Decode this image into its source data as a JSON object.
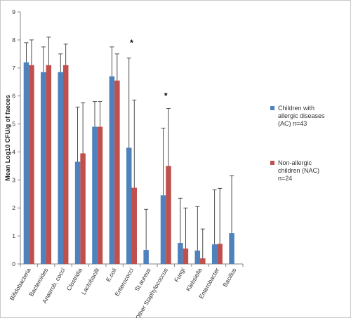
{
  "chart_data": {
    "type": "bar",
    "ylabel": "Mean Log10 CFU/g of faeces",
    "ylim": [
      0,
      9
    ],
    "yticks": [
      0,
      1,
      2,
      3,
      4,
      5,
      6,
      7,
      8,
      9
    ],
    "grid": false,
    "legend_position": "right",
    "categories": [
      "Bifidobacteria",
      "Bacteroides",
      "Anaerob. cocci",
      "Clostridia",
      "Lactobacilli",
      "E.coli",
      "Enterococci",
      "St.aureus",
      "Other Staphylococcus",
      "Fungi",
      "Klebsiella",
      "Enterobacter",
      "Bacillus"
    ],
    "series": [
      {
        "name": "Children with allergic diseases (AC) n=43",
        "color": "#4f81bd",
        "values": [
          7.2,
          6.85,
          6.85,
          3.65,
          4.9,
          6.7,
          4.15,
          0.5,
          2.45,
          0.75,
          0.48,
          0.7,
          1.1
        ],
        "error_upper": [
          7.9,
          7.75,
          7.5,
          5.6,
          5.8,
          7.75,
          7.35,
          1.95,
          4.85,
          2.35,
          2.05,
          2.65,
          3.15
        ]
      },
      {
        "name": "Non-allergic children (NAC) n=24",
        "color": "#c0504d",
        "values": [
          7.1,
          7.1,
          7.1,
          3.95,
          4.9,
          6.55,
          2.72,
          null,
          3.5,
          0.55,
          0.2,
          0.72,
          null
        ],
        "error_upper": [
          8.0,
          8.1,
          7.85,
          5.75,
          5.8,
          7.5,
          5.85,
          null,
          5.55,
          2.0,
          1.25,
          2.7,
          null
        ]
      }
    ],
    "annotations": [
      {
        "text": "*",
        "category": "Enterococci",
        "y": 8.0
      },
      {
        "text": "*",
        "category": "Other Staphylococcus",
        "y": 6.1
      }
    ]
  },
  "legend": {
    "items": [
      {
        "lines": [
          "Children with",
          "allergic diseases",
          "(AC) n=43"
        ],
        "color": "#4f81bd"
      },
      {
        "lines": [
          "Non-allergic",
          "children (NAC)",
          "n=24"
        ],
        "color": "#c0504d"
      }
    ]
  }
}
